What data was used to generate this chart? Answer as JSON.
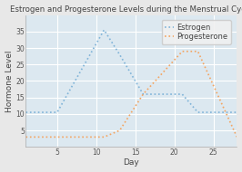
{
  "title": "Estrogen and Progesterone Levels during the Menstrual Cycle",
  "xlabel": "Day",
  "ylabel": "Hormone Level",
  "estrogen": {
    "x": [
      1,
      5,
      11,
      13,
      16,
      21,
      23,
      28
    ],
    "y": [
      10.5,
      10.5,
      35.5,
      28,
      16,
      16,
      10.5,
      10.5
    ],
    "color": "#7fb3d8",
    "label": "Estrogen"
  },
  "progesterone": {
    "x": [
      1,
      11,
      13,
      16,
      21,
      23,
      28
    ],
    "y": [
      3,
      3,
      5,
      16,
      29,
      29,
      3
    ],
    "color": "#f4a460",
    "label": "Progesterone"
  },
  "xlim": [
    1,
    28
  ],
  "ylim": [
    0,
    40
  ],
  "xticks": [
    5,
    10,
    15,
    20,
    25
  ],
  "yticks": [
    5,
    10,
    15,
    20,
    25,
    30,
    35
  ],
  "fig_background": "#e8e8e8",
  "plot_background": "#dce8f0",
  "grid_color": "#ffffff",
  "title_fontsize": 6.2,
  "label_fontsize": 6.5,
  "tick_fontsize": 5.5,
  "legend_fontsize": 6,
  "linewidth": 1.2,
  "linestyle": "dotted"
}
